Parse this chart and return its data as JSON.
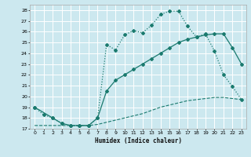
{
  "xlabel": "Humidex (Indice chaleur)",
  "xlim": [
    -0.5,
    23.5
  ],
  "ylim": [
    17,
    28.5
  ],
  "yticks": [
    17,
    18,
    19,
    20,
    21,
    22,
    23,
    24,
    25,
    26,
    27,
    28
  ],
  "xticks": [
    0,
    1,
    2,
    3,
    4,
    5,
    6,
    7,
    8,
    9,
    10,
    11,
    12,
    13,
    14,
    15,
    16,
    17,
    18,
    19,
    20,
    21,
    22,
    23
  ],
  "bg_color": "#cce8ef",
  "grid_color": "#ffffff",
  "line_color": "#1a7a6e",
  "line1_x": [
    0,
    1,
    2,
    3,
    4,
    5,
    6,
    7,
    8,
    9,
    10,
    11,
    12,
    13,
    14,
    15,
    16,
    17,
    18,
    19,
    20,
    21,
    22,
    23
  ],
  "line1_y": [
    19.0,
    18.3,
    18.0,
    17.5,
    17.3,
    17.3,
    17.3,
    18.0,
    24.8,
    24.3,
    25.7,
    26.1,
    25.9,
    26.6,
    27.6,
    27.9,
    27.9,
    26.5,
    25.5,
    25.8,
    24.2,
    22.0,
    20.9,
    19.7
  ],
  "line2_x": [
    0,
    2,
    3,
    4,
    5,
    6,
    7,
    8,
    9,
    10,
    11,
    12,
    13,
    14,
    15,
    16,
    17,
    18,
    19,
    20,
    21,
    22,
    23
  ],
  "line2_y": [
    19.0,
    18.0,
    17.5,
    17.3,
    17.3,
    17.3,
    18.0,
    20.5,
    21.5,
    22.0,
    22.5,
    23.0,
    23.5,
    24.0,
    24.5,
    25.0,
    25.3,
    25.5,
    25.7,
    25.8,
    25.8,
    24.5,
    23.0
  ],
  "line3_x": [
    0,
    1,
    2,
    3,
    4,
    5,
    6,
    7,
    8,
    9,
    10,
    11,
    12,
    13,
    14,
    15,
    16,
    17,
    18,
    19,
    20,
    21,
    22,
    23
  ],
  "line3_y": [
    17.3,
    17.3,
    17.3,
    17.3,
    17.3,
    17.3,
    17.3,
    17.4,
    17.6,
    17.8,
    18.0,
    18.2,
    18.4,
    18.7,
    19.0,
    19.2,
    19.4,
    19.6,
    19.7,
    19.8,
    19.9,
    19.9,
    19.8,
    19.7
  ]
}
